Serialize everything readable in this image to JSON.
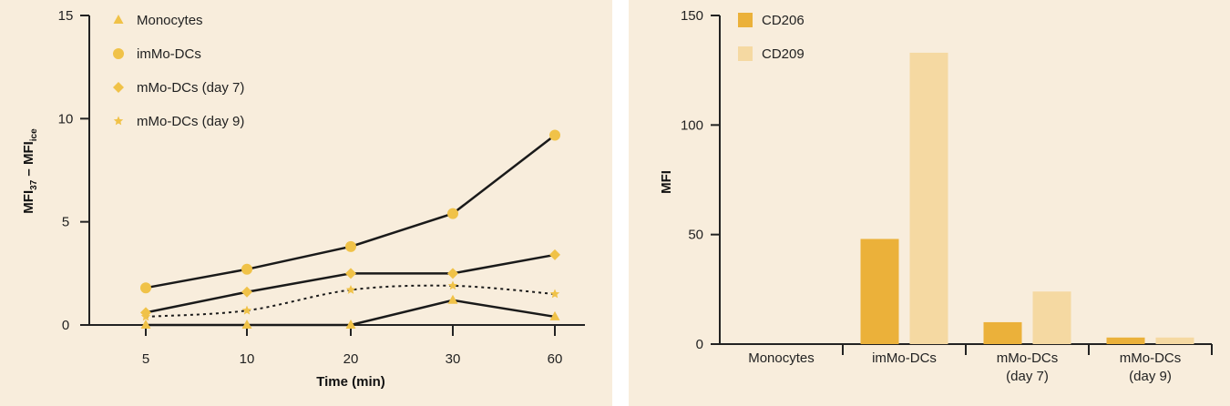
{
  "chart_data": [
    {
      "type": "line",
      "xlabel": "Time (min)",
      "ylabel": "MFI",
      "ylabel_sub1": "37",
      "ylabel_mid": " – MFI",
      "ylabel_sub2": "ice",
      "x": [
        "5",
        "10",
        "20",
        "30",
        "60"
      ],
      "y_ticks": [
        "0",
        "5",
        "10",
        "15"
      ],
      "ylim": [
        0,
        15
      ],
      "legend_position": "top-left",
      "series": [
        {
          "name": "Monocytes",
          "marker": "triangle",
          "line": "solid",
          "values": [
            0,
            0,
            0,
            1.2,
            0.4
          ]
        },
        {
          "name": "imMo-DCs",
          "marker": "circle",
          "line": "solid",
          "values": [
            1.8,
            2.7,
            3.8,
            5.4,
            9.2
          ]
        },
        {
          "name": "mMo-DCs (day 7)",
          "marker": "diamond",
          "line": "solid",
          "values": [
            0.6,
            1.6,
            2.5,
            2.5,
            3.4
          ]
        },
        {
          "name": "mMo-DCs (day 9)",
          "marker": "star",
          "line": "dotted",
          "values": [
            0.4,
            0.7,
            1.7,
            1.9,
            1.5
          ]
        }
      ],
      "colors": {
        "marker": "#f0c248",
        "line": "#1a1a1a",
        "axis": "#222222"
      }
    },
    {
      "type": "bar",
      "ylabel": "MFI",
      "categories": [
        "Monocytes",
        "imMo-DCs",
        "mMo-DCs\n(day 7)",
        "mMo-DCs\n(day 9)"
      ],
      "y_ticks": [
        "0",
        "50",
        "100",
        "150"
      ],
      "ylim": [
        0,
        150
      ],
      "legend_position": "top-left",
      "series": [
        {
          "name": "CD206",
          "color": "#ebb13a",
          "values": [
            0,
            48,
            10,
            3
          ]
        },
        {
          "name": "CD209",
          "color": "#f5d9a2",
          "values": [
            0,
            133,
            24,
            3
          ]
        }
      ]
    }
  ]
}
